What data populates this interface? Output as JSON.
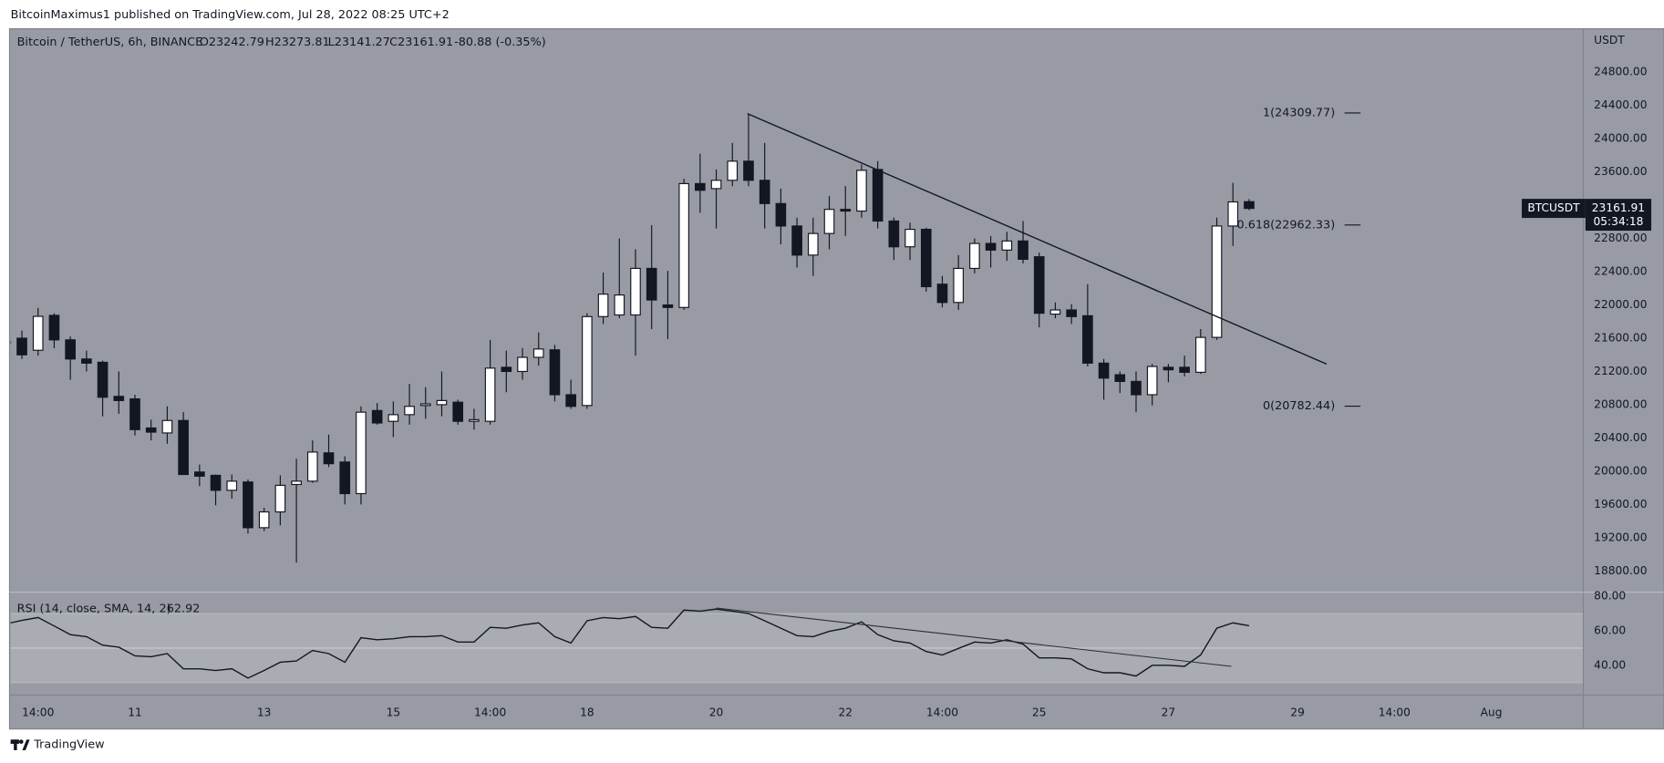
{
  "published": "BitcoinMaximus1 published on TradingView.com, Jul 28, 2022 08:25 UTC+2",
  "footer": "TradingView",
  "chart_data": {
    "type": "candlestick",
    "title": "Bitcoin / TetherUS, 6h, BINANCE",
    "header_values": [
      "O23242.79",
      "H23273.81",
      "L23141.27",
      "C23161.91",
      "-80.88 (-0.35%)"
    ],
    "y_axis_label": "USDT",
    "x": [
      0,
      1,
      2,
      3,
      4,
      5,
      6,
      7,
      8,
      9,
      10,
      11,
      12,
      13,
      14,
      15,
      16,
      17,
      18,
      19,
      20,
      21,
      22,
      23,
      24,
      25,
      26,
      27,
      28,
      29,
      30,
      31,
      32,
      33,
      34,
      35,
      36,
      37,
      38,
      39,
      40,
      41,
      42,
      43,
      44,
      45,
      46,
      47,
      48,
      49,
      50,
      51,
      52,
      53,
      54,
      55,
      56,
      57,
      58,
      59,
      60,
      61,
      62,
      63,
      64,
      65,
      66,
      67,
      68,
      69,
      70,
      71,
      72,
      73,
      74,
      75,
      76,
      77
    ],
    "open": [
      21560,
      21600,
      21455,
      21875,
      21580,
      21350,
      21310,
      20900,
      20870,
      20520,
      20460,
      20610,
      19990,
      19950,
      19770,
      19870,
      19320,
      19510,
      19840,
      19880,
      20220,
      20110,
      19730,
      20730,
      20600,
      20680,
      20790,
      20800,
      20830,
      20600,
      20600,
      21250,
      21200,
      21370,
      21460,
      20920,
      20790,
      21860,
      21880,
      21880,
      22440,
      22000,
      21970,
      23460,
      23400,
      23500,
      23730,
      23500,
      23220,
      22950,
      22600,
      22860,
      23150,
      23130,
      23630,
      23010,
      22700,
      22910,
      22250,
      22030,
      22440,
      22740,
      22660,
      22770,
      22580,
      21890,
      21940,
      21870,
      21300,
      21160,
      21080,
      20920,
      21250,
      21250,
      21190,
      21610,
      22950,
      23242.79
    ],
    "high": [
      21600,
      21690,
      21965,
      21900,
      21620,
      21450,
      21330,
      21200,
      20920,
      20620,
      20780,
      20710,
      20080,
      19960,
      19960,
      19900,
      19560,
      19950,
      20150,
      20370,
      20440,
      20180,
      20780,
      20820,
      20840,
      21050,
      21010,
      21200,
      20860,
      20750,
      21580,
      21450,
      21480,
      21670,
      21520,
      21100,
      21900,
      22390,
      22800,
      22670,
      22960,
      22410,
      23520,
      23820,
      23630,
      23950,
      24300,
      23950,
      23400,
      23050,
      23050,
      23310,
      23430,
      23690,
      23730,
      23050,
      22990,
      22930,
      22350,
      22600,
      22800,
      22830,
      22880,
      23010,
      22630,
      22030,
      22010,
      22250,
      21350,
      21200,
      21200,
      21290,
      21290,
      21390,
      21710,
      23050,
      23470,
      23273.81
    ],
    "low": [
      21450,
      21350,
      21390,
      21480,
      21100,
      21200,
      20660,
      20690,
      20430,
      20370,
      20330,
      19960,
      19820,
      19590,
      19670,
      19250,
      19280,
      19350,
      18900,
      19860,
      20050,
      19600,
      19600,
      20560,
      20410,
      20560,
      20630,
      20660,
      20560,
      20500,
      20560,
      20950,
      21100,
      21270,
      20840,
      20750,
      20750,
      21770,
      21840,
      21390,
      21710,
      21590,
      21940,
      23110,
      22920,
      23430,
      23430,
      22920,
      22730,
      22450,
      22350,
      22670,
      22830,
      23050,
      22920,
      22540,
      22540,
      22160,
      21970,
      21940,
      22380,
      22450,
      22530,
      22500,
      21730,
      21840,
      21770,
      21260,
      20860,
      20940,
      20710,
      20790,
      21070,
      21140,
      21170,
      21580,
      22710,
      23141.27
    ],
    "close": [
      21540,
      21400,
      21863,
      21580,
      21350,
      21300,
      20890,
      20850,
      20500,
      20470,
      20610,
      19960,
      19940,
      19770,
      19880,
      19320,
      19510,
      19830,
      19880,
      20230,
      20090,
      19730,
      20710,
      20580,
      20680,
      20780,
      20810,
      20850,
      20600,
      20620,
      21240,
      21200,
      21370,
      21470,
      20920,
      20780,
      21860,
      22130,
      22120,
      22440,
      22060,
      21970,
      23460,
      23380,
      23500,
      23730,
      23500,
      23220,
      22950,
      22600,
      22860,
      23150,
      23130,
      23620,
      23010,
      22700,
      22910,
      22220,
      22030,
      22440,
      22740,
      22660,
      22770,
      22550,
      21900,
      21940,
      21860,
      21300,
      21120,
      21080,
      20920,
      21260,
      21220,
      21190,
      21610,
      22950,
      23240,
      23161.91
    ],
    "colors": {
      "up": "#ffffff",
      "down": "#131722",
      "pane": "#989ba3",
      "line": "#131722"
    },
    "xlim": [
      0.3,
      97.7
    ],
    "xticks": [
      {
        "value": 2,
        "label": "14:00"
      },
      {
        "value": 8,
        "label": "11"
      },
      {
        "value": 16,
        "label": "13"
      },
      {
        "value": 24,
        "label": "15"
      },
      {
        "value": 30,
        "label": "14:00"
      },
      {
        "value": 36,
        "label": "18"
      },
      {
        "value": 44,
        "label": "20"
      },
      {
        "value": 52,
        "label": "22"
      },
      {
        "value": 58,
        "label": "14:00"
      },
      {
        "value": 64,
        "label": "25"
      },
      {
        "value": 72,
        "label": "27"
      },
      {
        "value": 80,
        "label": "29"
      },
      {
        "value": 86,
        "label": "14:00"
      },
      {
        "value": 92,
        "label": "Aug"
      }
    ],
    "ylim": [
      18545,
      25311
    ],
    "yticks": [
      {
        "value": 24800,
        "label": "24800.00"
      },
      {
        "value": 24400,
        "label": "24400.00"
      },
      {
        "value": 24000,
        "label": "24000.00"
      },
      {
        "value": 23600,
        "label": "23600.00"
      },
      {
        "value": 22800,
        "label": "22800.00"
      },
      {
        "value": 22400,
        "label": "22400.00"
      },
      {
        "value": 22000,
        "label": "22000.00"
      },
      {
        "value": 21600,
        "label": "21600.00"
      },
      {
        "value": 21200,
        "label": "21200.00"
      },
      {
        "value": 20800,
        "label": "20800.00"
      },
      {
        "value": 20400,
        "label": "20400.00"
      },
      {
        "value": 20000,
        "label": "20000.00"
      },
      {
        "value": 19600,
        "label": "19600.00"
      },
      {
        "value": 19200,
        "label": "19200.00"
      },
      {
        "value": 18800,
        "label": "18800.00"
      }
    ],
    "last_price_tag": {
      "symbol": "BTCUSDT",
      "price": 23161.91,
      "countdown": "05:34:18"
    },
    "trendline": {
      "x": [
        45.93,
        81.8
      ],
      "y": [
        24302,
        21289
      ]
    },
    "fib_levels": [
      {
        "value": 24309.77,
        "label": "1(24309.77)"
      },
      {
        "value": 22962.33,
        "label": "0.618(22962.33)"
      },
      {
        "value": 20782.44,
        "label": "0(20782.44)"
      }
    ],
    "indicator": {
      "title": "RSI (14, close, SMA, 14, 2)",
      "last": 62.92,
      "values": [
        64,
        66,
        67.7,
        62.8,
        57.8,
        56.6,
        51.7,
        50.5,
        45.5,
        45,
        46.8,
        38,
        38,
        37,
        38,
        32.6,
        37,
        41.8,
        42.5,
        48.6,
        46.8,
        41.8,
        56,
        54.8,
        55.4,
        56.6,
        56.6,
        57.2,
        53.5,
        53.5,
        62,
        61.5,
        63.4,
        64.6,
        56.6,
        52.9,
        65.8,
        67.7,
        67,
        68.3,
        62,
        61.5,
        72,
        71.4,
        72.6,
        71.4,
        70,
        65.8,
        61.5,
        57.2,
        56.6,
        59.7,
        61.5,
        65.2,
        57.8,
        54.2,
        52.9,
        48,
        46,
        49.8,
        53.5,
        52.9,
        54.8,
        52.3,
        44.3,
        44.3,
        43.7,
        38,
        35.7,
        35.7,
        33.8,
        40,
        40,
        39.4,
        46,
        61.5,
        64.6,
        62.92
      ],
      "ylim": [
        22.8,
        81.8
      ],
      "yticks": [
        {
          "value": 80,
          "label": "80.00"
        },
        {
          "value": 60,
          "label": "60.00"
        },
        {
          "value": 40,
          "label": "40.00"
        }
      ],
      "band": [
        30,
        70
      ],
      "midline": 50,
      "trendline": {
        "x": [
          44.02,
          75.9
        ],
        "y": [
          73.2,
          39.4
        ]
      }
    }
  }
}
